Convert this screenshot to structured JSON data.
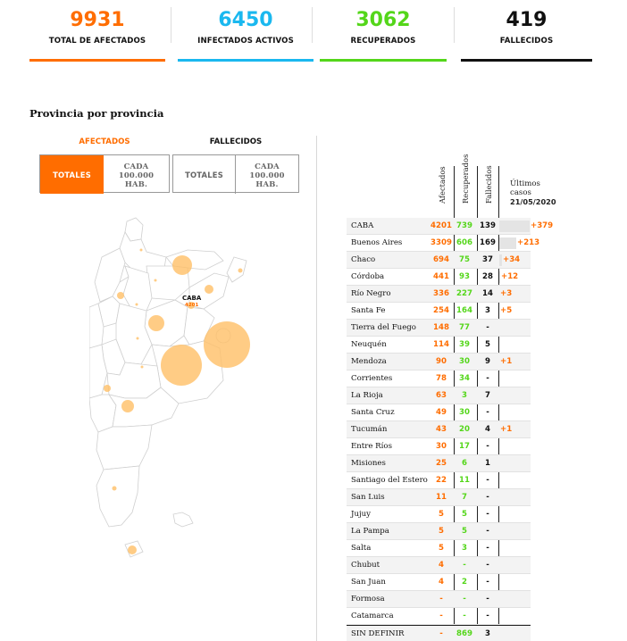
{
  "stats": [
    {
      "value": "9931",
      "label": "TOTAL DE AFECTADOS",
      "color": "#ff6d00"
    },
    {
      "value": "6450",
      "label": "INFECTADOS ACTIVOS",
      "color": "#1ab8ef"
    },
    {
      "value": "3062",
      "label": "RECUPERADOS",
      "color": "#54d61a"
    },
    {
      "value": "419",
      "label": "FALLECIDOS",
      "color": "#111111"
    }
  ],
  "section_title": "Provincia por provincia",
  "toggles": {
    "afectados": {
      "heading": "AFECTADOS",
      "totales": "TOTALES",
      "cada1": "CADA",
      "cada2": "100.000",
      "cada3": "HAB."
    },
    "fallecidos": {
      "heading": "FALLECIDOS",
      "totales": "TOTALES",
      "cada1": "CADA",
      "cada2": "100.000",
      "cada3": "HAB."
    }
  },
  "map": {
    "caba_label": "CABA",
    "caba_value": "4201"
  },
  "table": {
    "col_afectados": "Afectados",
    "col_recuperados": "Recuperados",
    "col_fallecidos": "Fallecidos",
    "ultimos_line1": "Últimos",
    "ultimos_line2": "casos",
    "ultimos_date": "21/05/2020",
    "rows": [
      {
        "name": "CABA",
        "afectados": "4201",
        "recuperados": "739",
        "fallecidos": "139",
        "ultimos": "+379",
        "ultimos_value": 379
      },
      {
        "name": "Buenos Aires",
        "afectados": "3309",
        "recuperados": "606",
        "fallecidos": "169",
        "ultimos": "+213",
        "ultimos_value": 213
      },
      {
        "name": "Chaco",
        "afectados": "694",
        "recuperados": "75",
        "fallecidos": "37",
        "ultimos": "+34",
        "ultimos_value": 34
      },
      {
        "name": "Córdoba",
        "afectados": "441",
        "recuperados": "93",
        "fallecidos": "28",
        "ultimos": "+12",
        "ultimos_value": 12
      },
      {
        "name": "Río Negro",
        "afectados": "336",
        "recuperados": "227",
        "fallecidos": "14",
        "ultimos": "+3",
        "ultimos_value": 3
      },
      {
        "name": "Santa Fe",
        "afectados": "254",
        "recuperados": "164",
        "fallecidos": "3",
        "ultimos": "+5",
        "ultimos_value": 5
      },
      {
        "name": "Tierra del Fuego",
        "afectados": "148",
        "recuperados": "77",
        "fallecidos": "-",
        "ultimos": "",
        "ultimos_value": 0
      },
      {
        "name": "Neuquén",
        "afectados": "114",
        "recuperados": "39",
        "fallecidos": "5",
        "ultimos": "",
        "ultimos_value": 0
      },
      {
        "name": "Mendoza",
        "afectados": "90",
        "recuperados": "30",
        "fallecidos": "9",
        "ultimos": "+1",
        "ultimos_value": 1
      },
      {
        "name": "Corrientes",
        "afectados": "78",
        "recuperados": "34",
        "fallecidos": "-",
        "ultimos": "",
        "ultimos_value": 0
      },
      {
        "name": "La Rioja",
        "afectados": "63",
        "recuperados": "3",
        "fallecidos": "7",
        "ultimos": "",
        "ultimos_value": 0
      },
      {
        "name": "Santa Cruz",
        "afectados": "49",
        "recuperados": "30",
        "fallecidos": "-",
        "ultimos": "",
        "ultimos_value": 0
      },
      {
        "name": "Tucumán",
        "afectados": "43",
        "recuperados": "20",
        "fallecidos": "4",
        "ultimos": "+1",
        "ultimos_value": 1
      },
      {
        "name": "Entre Ríos",
        "afectados": "30",
        "recuperados": "17",
        "fallecidos": "-",
        "ultimos": "",
        "ultimos_value": 0
      },
      {
        "name": "Misiones",
        "afectados": "25",
        "recuperados": "6",
        "fallecidos": "1",
        "ultimos": "",
        "ultimos_value": 0
      },
      {
        "name": "Santiago del Estero",
        "afectados": "22",
        "recuperados": "11",
        "fallecidos": "-",
        "ultimos": "",
        "ultimos_value": 0
      },
      {
        "name": "San Luis",
        "afectados": "11",
        "recuperados": "7",
        "fallecidos": "-",
        "ultimos": "",
        "ultimos_value": 0
      },
      {
        "name": "Jujuy",
        "afectados": "5",
        "recuperados": "5",
        "fallecidos": "-",
        "ultimos": "",
        "ultimos_value": 0
      },
      {
        "name": "La Pampa",
        "afectados": "5",
        "recuperados": "5",
        "fallecidos": "-",
        "ultimos": "",
        "ultimos_value": 0
      },
      {
        "name": "Salta",
        "afectados": "5",
        "recuperados": "3",
        "fallecidos": "-",
        "ultimos": "",
        "ultimos_value": 0
      },
      {
        "name": "Chubut",
        "afectados": "4",
        "recuperados": "-",
        "fallecidos": "-",
        "ultimos": "",
        "ultimos_value": 0
      },
      {
        "name": "San Juan",
        "afectados": "4",
        "recuperados": "2",
        "fallecidos": "-",
        "ultimos": "",
        "ultimos_value": 0
      },
      {
        "name": "Formosa",
        "afectados": "-",
        "recuperados": "-",
        "fallecidos": "-",
        "ultimos": "",
        "ultimos_value": 0
      },
      {
        "name": "Catamarca",
        "afectados": "-",
        "recuperados": "-",
        "fallecidos": "-",
        "ultimos": "",
        "ultimos_value": 0
      },
      {
        "name": "SIN DEFINIR",
        "afectados": "-",
        "recuperados": "869",
        "fallecidos": "3",
        "ultimos": "",
        "ultimos_value": 0
      }
    ]
  }
}
